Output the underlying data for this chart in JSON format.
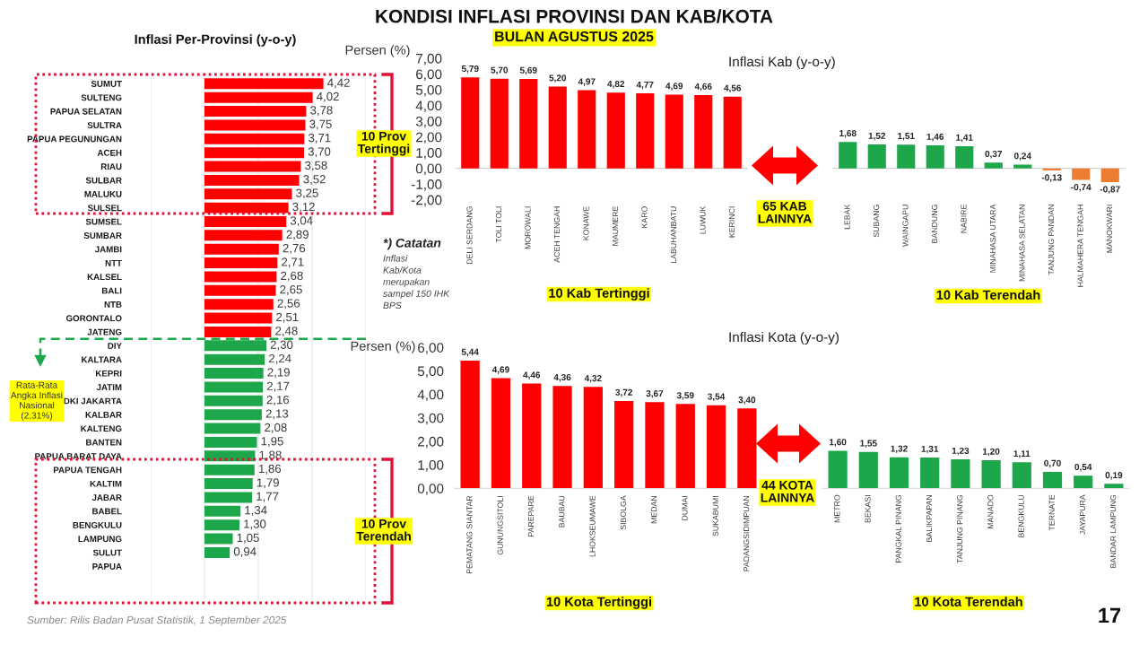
{
  "chart_data": [
    {
      "type": "other",
      "title": "KONDISI INFLASI PROVINSI DAN KAB/KOTA",
      "subtitle": "BULAN AGUSTUS 2025"
    },
    {
      "type": "bar",
      "orientation": "horizontal",
      "title": "Inflasi Per-Provinsi (y-o-y)",
      "categories": [
        "SUMUT",
        "SULTENG",
        "PAPUA SELATAN",
        "SULTRA",
        "PAPUA PEGUNUNGAN",
        "ACEH",
        "RIAU",
        "SULBAR",
        "MALUKU",
        "SULSEL",
        "SUMSEL",
        "SUMBAR",
        "JAMBI",
        "NTT",
        "KALSEL",
        "BALI",
        "NTB",
        "GORONTALO",
        "JATENG",
        "DIY",
        "KALTARA",
        "KEPRI",
        "JATIM",
        "DKI JAKARTA",
        "KALBAR",
        "KALTENG",
        "BANTEN",
        "PAPUA BARAT DAYA",
        "PAPUA TENGAH",
        "KALTIM",
        "JABAR",
        "BABEL",
        "BENGKULU",
        "LAMPUNG",
        "SULUT",
        "PAPUA",
        null,
        null
      ],
      "values": [
        4.42,
        4.02,
        3.78,
        3.75,
        3.71,
        3.7,
        3.58,
        3.52,
        3.25,
        3.12,
        3.04,
        2.89,
        2.76,
        2.71,
        2.68,
        2.65,
        2.56,
        2.51,
        2.48,
        2.3,
        2.24,
        2.19,
        2.17,
        2.16,
        2.13,
        2.08,
        1.95,
        1.88,
        1.86,
        1.79,
        1.77,
        1.34,
        1.3,
        1.05,
        0.94,
        null,
        null,
        null
      ],
      "colors": [
        "#ff0000",
        "#ff0000",
        "#ff0000",
        "#ff0000",
        "#ff0000",
        "#ff0000",
        "#ff0000",
        "#ff0000",
        "#ff0000",
        "#ff0000",
        "#ff0000",
        "#ff0000",
        "#ff0000",
        "#ff0000",
        "#ff0000",
        "#ff0000",
        "#ff0000",
        "#ff0000",
        "#ff0000",
        "#1ea64b",
        "#1ea64b",
        "#1ea64b",
        "#1ea64b",
        "#1ea64b",
        "#1ea64b",
        "#1ea64b",
        "#1ea64b",
        "#1ea64b",
        "#1ea64b",
        "#1ea64b",
        "#1ea64b",
        "#1ea64b",
        "#1ea64b",
        "#1ea64b",
        "#1ea64b",
        "#1ea64b",
        "#1ea64b",
        "#1ea64b"
      ],
      "value_labels": [
        "4,42",
        "4,02",
        "3,78",
        "3,75",
        "3,71",
        "3,70",
        "3,58",
        "3,52",
        "3,25",
        "3,12",
        "3,04",
        "2,89",
        "2,76",
        "2,71",
        "2,68",
        "2,65",
        "2,56",
        "2,51",
        "2,48",
        "2,30",
        "2,24",
        "2,19",
        "2,17",
        "2,16",
        "2,13",
        "2,08",
        "1,95",
        "1,88",
        "1,86",
        "1,79",
        "1,77",
        "1,34",
        "1,30",
        "1,05",
        "0,94",
        null,
        null,
        null
      ],
      "xlim": [
        -2,
        6
      ],
      "xticks": [
        {
          "value": -2,
          "label": null
        },
        {
          "value": 0,
          "label": null
        },
        {
          "value": 2,
          "label": null
        },
        {
          "value": 4,
          "label": null
        },
        {
          "value": 6,
          "label": null
        }
      ],
      "grid": "x",
      "tick_labels": "y",
      "annotations": [
        "10 Prov\nTertinggi",
        "Rata-Rata\nAngka Inflasi\nNasional\n(2,31%)",
        "10 Prov\nTerendah",
        "Sumber: Rilis Badan Pusat Statistik, 1 September 2025"
      ]
    },
    {
      "type": "bar",
      "categories": [
        "DELI SERDANG",
        "TOLI TOLI",
        "MOROWALI",
        "ACEH TENGAH",
        "KONAWE",
        "MAUMERE",
        "KARO",
        "LABUHANBATU",
        "LUWUK",
        "KERINCI"
      ],
      "values": [
        5.79,
        5.7,
        5.69,
        5.2,
        4.97,
        4.82,
        4.77,
        4.69,
        4.66,
        4.56
      ],
      "color": "#ff0000",
      "value_labels": [
        "5,79",
        "5,70",
        "5,69",
        "5,20",
        "4,97",
        "4,82",
        "4,77",
        "4,69",
        "4,66",
        "4,56"
      ],
      "ylabel": "Persen (%)",
      "xlabel": "10 Kab Tertinggi",
      "ylim": [
        -2,
        7
      ],
      "yticks": [
        {
          "value": 7,
          "label": "7,00"
        },
        {
          "value": 6,
          "label": "6,00"
        },
        {
          "value": 5,
          "label": "5,00"
        },
        {
          "value": 4,
          "label": "4,00"
        },
        {
          "value": 3,
          "label": "3,00"
        },
        {
          "value": 2,
          "label": "2,00"
        },
        {
          "value": 1,
          "label": "1,00"
        },
        {
          "value": 0,
          "label": "0,00"
        },
        {
          "value": -1,
          "label": "-1,00"
        },
        {
          "value": -2,
          "label": "-2,00"
        }
      ],
      "annotations": [
        "*) Catatan",
        "Inflasi\nKab/Kota\nmerupakan\nsampel 150 IHK\nBPS",
        "65 KAB\nLAINNYA"
      ]
    },
    {
      "type": "bar",
      "title": "Inflasi Kab (y-o-y)",
      "categories": [
        "LEBAK",
        "SUBANG",
        "WAINGAPU",
        "BANDUNG",
        "NABIRE",
        "MINAHASA UTARA",
        "MINAHASA SELATAN",
        "TANJUNG PANDAN",
        "HALMAHERA TENGAH",
        "MANOKWARI"
      ],
      "values": [
        1.68,
        1.52,
        1.51,
        1.46,
        1.41,
        0.37,
        0.24,
        -0.13,
        -0.74,
        -0.87
      ],
      "colors": [
        "#1ea64b",
        "#1ea64b",
        "#1ea64b",
        "#1ea64b",
        "#1ea64b",
        "#1ea64b",
        "#1ea64b",
        "#ed7d31",
        "#ed7d31",
        "#ed7d31"
      ],
      "value_labels": [
        "1,68",
        "1,52",
        "1,51",
        "1,46",
        "1,41",
        "0,37",
        "0,24",
        "-0,13",
        "-0,74",
        "-0,87"
      ],
      "xlabel": "10 Kab Terendah",
      "ylim": [
        -2,
        7
      ],
      "tick_labels": "x"
    },
    {
      "type": "bar",
      "categories": [
        "PEMATANG SIANTAR",
        "GUNUNGSITOLI",
        "PAREPARE",
        "BAUBAU",
        "LHOKSEUMAWE",
        "SIBOLGA",
        "MEDAN",
        "DUMAI",
        "SUKABUMI",
        "PADANGSIDIMPUAN"
      ],
      "values": [
        5.44,
        4.69,
        4.46,
        4.36,
        4.32,
        3.72,
        3.67,
        3.59,
        3.54,
        3.4
      ],
      "color": "#ff0000",
      "value_labels": [
        "5,44",
        "4,69",
        "4,46",
        "4,36",
        "4,32",
        "3,72",
        "3,67",
        "3,59",
        "3,54",
        "3,40"
      ],
      "ylabel": "Persen (%)",
      "xlabel": "10 Kota Tertinggi",
      "ylim": [
        0,
        6
      ],
      "yticks": [
        {
          "value": 6,
          "label": "6,00"
        },
        {
          "value": 5,
          "label": "5,00"
        },
        {
          "value": 4,
          "label": "4,00"
        },
        {
          "value": 3,
          "label": "3,00"
        },
        {
          "value": 2,
          "label": "2,00"
        },
        {
          "value": 1,
          "label": "1,00"
        },
        {
          "value": 0,
          "label": "0,00"
        }
      ],
      "annotations": [
        "44 KOTA\nLAINNYA"
      ]
    },
    {
      "type": "bar",
      "title": "Inflasi Kota (y-o-y)",
      "categories": [
        "METRO",
        "BEKASI",
        "PANGKAL PINANG",
        "BALIKPAPAN",
        "TANJUNG PINANG",
        "MANADO",
        "BENGKULU",
        "TERNATE",
        "JAYAPURA",
        "BANDAR LAMPUNG"
      ],
      "values": [
        1.6,
        1.55,
        1.32,
        1.31,
        1.23,
        1.2,
        1.11,
        0.7,
        0.54,
        0.19
      ],
      "color": "#1ea64b",
      "value_labels": [
        "1,60",
        "1,55",
        "1,32",
        "1,31",
        "1,23",
        "1,20",
        "1,11",
        "0,70",
        "0,54",
        "0,19"
      ],
      "xlabel": "10 Kota Terendah",
      "ylim": [
        0,
        6
      ],
      "tick_labels": "x",
      "annotations": [
        "17"
      ]
    }
  ]
}
